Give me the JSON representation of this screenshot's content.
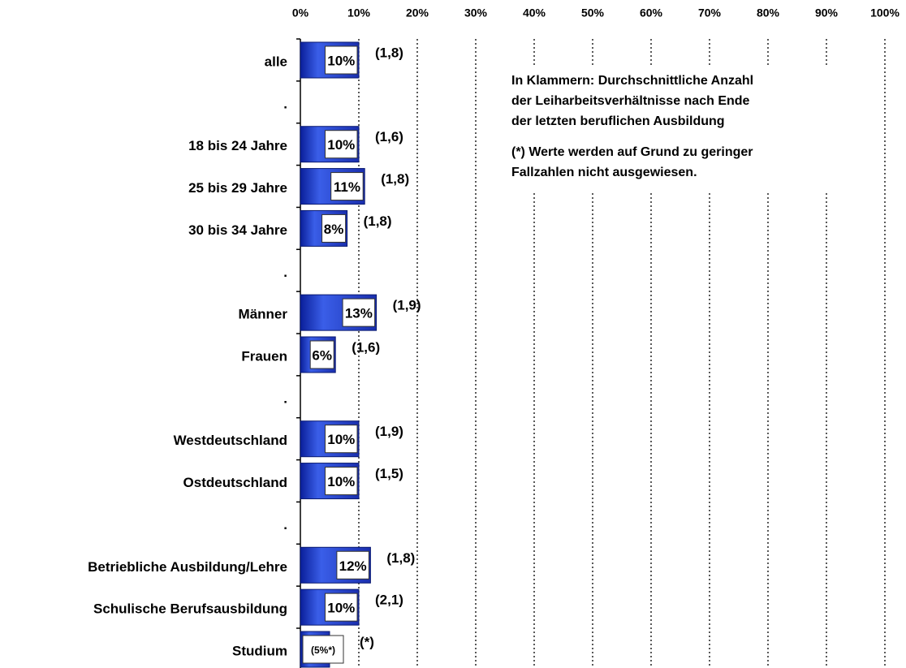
{
  "chart_data": {
    "type": "bar",
    "orientation": "horizontal",
    "categories": [
      "alle",
      ".",
      "18 bis 24 Jahre",
      "25 bis 29 Jahre",
      "30 bis 34 Jahre",
      ".",
      "Männer",
      "Frauen",
      ".",
      "Westdeutschland",
      "Ostdeutschland",
      ".",
      "Betriebliche Ausbildung/Lehre",
      "Schulische Berufsausbildung",
      "Studium"
    ],
    "values": [
      10,
      null,
      10,
      11,
      8,
      null,
      13,
      6,
      null,
      10,
      10,
      null,
      12,
      10,
      5
    ],
    "value_labels": [
      "10%",
      null,
      "10%",
      "11%",
      "8%",
      null,
      "13%",
      "6%",
      null,
      "10%",
      "10%",
      null,
      "12%",
      "10%",
      "(5%*)"
    ],
    "notes": [
      "(1,8)",
      null,
      "(1,6)",
      "(1,8)",
      "(1,8)",
      null,
      "(1,9)",
      "(1,6)",
      null,
      "(1,9)",
      "(1,5)",
      null,
      "(1,8)",
      "(2,1)",
      "(*)"
    ],
    "color": "#2244cc",
    "xlim": [
      0,
      100
    ],
    "xticks": [
      {
        "value": 0,
        "label": "0%"
      },
      {
        "value": 10,
        "label": "10%"
      },
      {
        "value": 20,
        "label": "20%"
      },
      {
        "value": 30,
        "label": "30%"
      },
      {
        "value": 40,
        "label": "40%"
      },
      {
        "value": 50,
        "label": "50%"
      },
      {
        "value": 60,
        "label": "60%"
      },
      {
        "value": 70,
        "label": "70%"
      },
      {
        "value": 80,
        "label": "80%"
      },
      {
        "value": 90,
        "label": "90%"
      },
      {
        "value": 100,
        "label": "100%"
      }
    ],
    "grid": true,
    "annotations": [
      "In Klammern: Durchschnittliche Anzahl",
      "der Leiharbeitsverhältnisse nach Ende",
      "der letzten beruflichen Ausbildung",
      "(*) Werte werden auf Grund zu geringer",
      "Fallzahlen nicht ausgewiesen."
    ]
  }
}
